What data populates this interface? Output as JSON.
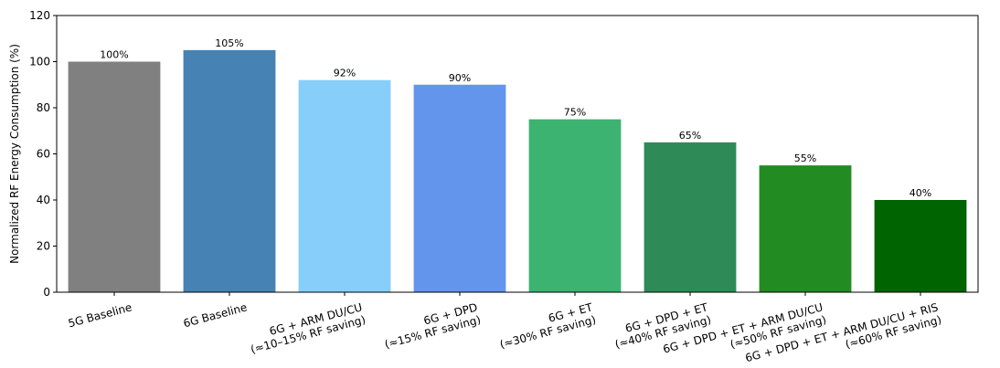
{
  "chart_data": {
    "type": "bar",
    "title": "",
    "xlabel": "",
    "ylabel": "Normalized RF Energy Consumption (%)",
    "ylim": [
      0,
      120
    ],
    "yticks": [
      0,
      20,
      40,
      60,
      80,
      100,
      120
    ],
    "grid": false,
    "categories": [
      [
        "5G Baseline"
      ],
      [
        "6G Baseline"
      ],
      [
        "6G + ARM DU/CU",
        "(≈10–15% RF saving)"
      ],
      [
        "6G + DPD",
        "(≈15% RF saving)"
      ],
      [
        "6G + ET",
        "(≈30% RF saving)"
      ],
      [
        "6G + DPD + ET",
        "(≈40% RF saving)"
      ],
      [
        "6G + DPD + ET + ARM DU/CU",
        "(≈50% RF saving)"
      ],
      [
        "6G + DPD + ET + ARM DU/CU + RIS",
        "(≈60% RF saving)"
      ]
    ],
    "values": [
      100,
      105,
      92,
      90,
      75,
      65,
      55,
      40
    ],
    "data_labels": [
      "100%",
      "105%",
      "92%",
      "90%",
      "75%",
      "65%",
      "55%",
      "40%"
    ],
    "colors": [
      "#808080",
      "#4682b4",
      "#87cefa",
      "#6495ed",
      "#3cb371",
      "#2e8b57",
      "#228b22",
      "#006400"
    ]
  }
}
